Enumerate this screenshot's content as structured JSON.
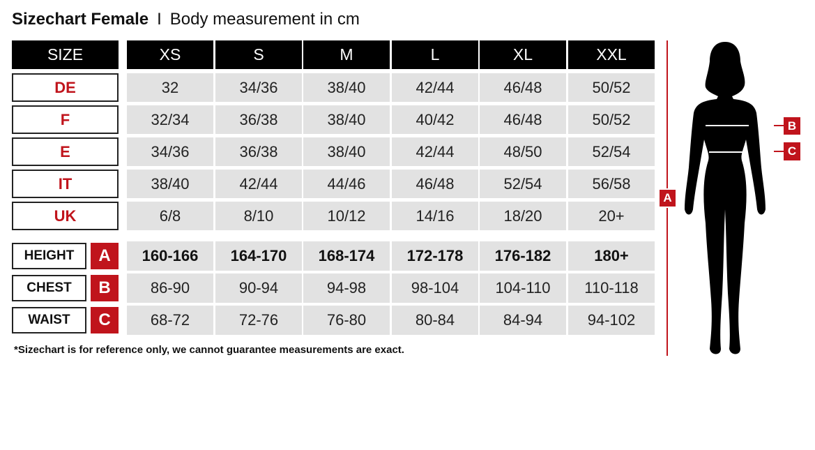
{
  "title": {
    "bold": "Sizechart Female",
    "separator": "I",
    "subtitle": "Body measurement in cm"
  },
  "header": {
    "label": "SIZE",
    "sizes": [
      "XS",
      "S",
      "M",
      "L",
      "XL",
      "XXL"
    ]
  },
  "size_rows": [
    {
      "label": "DE",
      "values": [
        "32",
        "34/36",
        "38/40",
        "42/44",
        "46/48",
        "50/52"
      ]
    },
    {
      "label": "F",
      "values": [
        "32/34",
        "36/38",
        "38/40",
        "40/42",
        "46/48",
        "50/52"
      ]
    },
    {
      "label": "E",
      "values": [
        "34/36",
        "36/38",
        "38/40",
        "42/44",
        "48/50",
        "52/54"
      ]
    },
    {
      "label": "IT",
      "values": [
        "38/40",
        "42/44",
        "44/46",
        "46/48",
        "52/54",
        "56/58"
      ]
    },
    {
      "label": "UK",
      "values": [
        "6/8",
        "8/10",
        "10/12",
        "14/16",
        "18/20",
        "20+"
      ]
    }
  ],
  "measure_rows": [
    {
      "label": "HEIGHT",
      "letter": "A",
      "values": [
        "160-166",
        "164-170",
        "168-174",
        "172-178",
        "176-182",
        "180+"
      ]
    },
    {
      "label": "CHEST",
      "letter": "B",
      "values": [
        "86-90",
        "90-94",
        "94-98",
        "98-104",
        "104-110",
        "110-118"
      ]
    },
    {
      "label": "WAIST",
      "letter": "C",
      "values": [
        "68-72",
        "72-76",
        "76-80",
        "80-84",
        "84-94",
        "94-102"
      ]
    }
  ],
  "footnote": "*Sizechart is for reference only, we cannot guarantee measurements are exact.",
  "figure": {
    "height_marker": "A",
    "chest_marker": "B",
    "waist_marker": "C"
  },
  "colors": {
    "accent": "#c0141c",
    "header": "#000000",
    "cell": "#e2e2e2"
  }
}
